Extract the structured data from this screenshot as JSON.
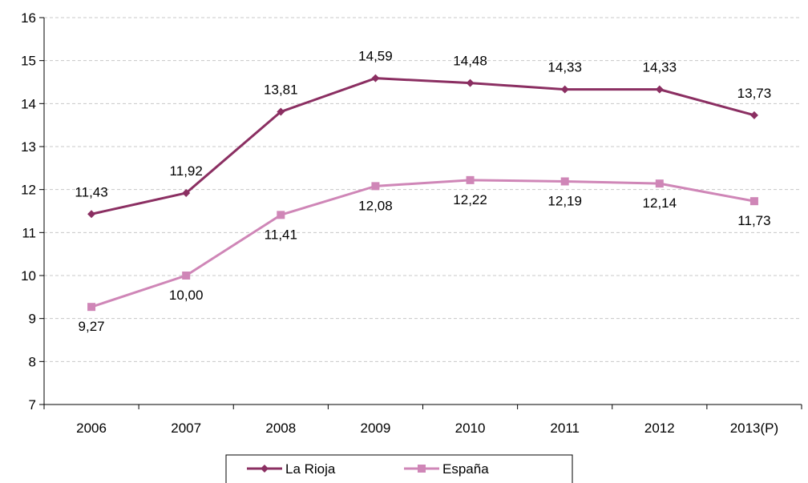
{
  "chart_data": {
    "type": "line",
    "title": "",
    "xlabel": "",
    "ylabel": "",
    "categories": [
      "2006",
      "2007",
      "2008",
      "2009",
      "2010",
      "2011",
      "2012",
      "2013(P)"
    ],
    "ylim": [
      7,
      16
    ],
    "yticks": [
      "7",
      "8",
      "9",
      "10",
      "11",
      "12",
      "13",
      "14",
      "15",
      "16"
    ],
    "grid": "horizontal dashed",
    "legend_position": "bottom",
    "series": [
      {
        "name": "La Rioja",
        "color": "#8B2F62",
        "marker": "diamond",
        "values": [
          11.43,
          11.92,
          13.81,
          14.59,
          14.48,
          14.33,
          14.33,
          13.73
        ],
        "labels": [
          "11,43",
          "11,92",
          "13,81",
          "14,59",
          "14,48",
          "14,33",
          "14,33",
          "13,73"
        ]
      },
      {
        "name": "España",
        "color": "#CF86B7",
        "marker": "square",
        "values": [
          9.27,
          10.0,
          11.41,
          12.08,
          12.22,
          12.19,
          12.14,
          11.73
        ],
        "labels": [
          "9,27",
          "10,00",
          "11,41",
          "12,08",
          "12,22",
          "12,19",
          "12,14",
          "11,73"
        ]
      }
    ]
  }
}
